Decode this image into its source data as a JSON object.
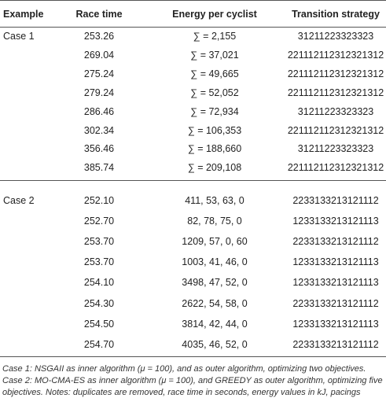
{
  "table": {
    "header": [
      "Example",
      "Race time",
      "Energy per cyclist",
      "Transition strategy"
    ],
    "groups": [
      {
        "label": "Case 1",
        "rows": [
          [
            "253.26",
            "∑ = 2,155",
            "31211223323323"
          ],
          [
            "269.04",
            "∑ = 37,021",
            "221112112312321312"
          ],
          [
            "275.24",
            "∑ = 49,665",
            "221112112312321312"
          ],
          [
            "279.24",
            "∑ = 52,052",
            "221112112312321312"
          ],
          [
            "286.46",
            "∑ = 72,934",
            "31211223323323"
          ],
          [
            "302.34",
            "∑ = 106,353",
            "221112112312321312"
          ],
          [
            "356.46",
            "∑ = 188,660",
            "31211223323323"
          ],
          [
            "385.74",
            "∑ = 209,108",
            "221112112312321312"
          ]
        ]
      },
      {
        "label": "Case 2",
        "rows": [
          [
            "252.10",
            "411, 53, 63, 0",
            "2233133213121112"
          ],
          [
            "252.70",
            "82, 78, 75, 0",
            "1233133213121113"
          ],
          [
            "253.70",
            "1209, 57, 0, 60",
            "2233133213121112"
          ],
          [
            "253.70",
            "1003, 41, 46, 0",
            "1233133213121113"
          ],
          [
            "254.10",
            "3498, 47, 52, 0",
            "1233133213121113"
          ],
          [
            "254.30",
            "2622, 54, 58, 0",
            "2233133213121112"
          ],
          [
            "254.50",
            "3814, 42, 44, 0",
            "1233133213121113"
          ],
          [
            "254.70",
            "4035, 46, 52, 0",
            "2233133213121112"
          ]
        ]
      }
    ],
    "caption": "Case 1: NSGAII as inner algorithm (μ = 100), and as outer algorithm, optimizing two objectives. Case 2: MO-CMA-ES as inner algorithm (μ = 100), and GREEDY as outer algorithm, optimizing five objectives. Notes: duplicates are removed, race time in seconds, energy values in kJ, pacings omitted."
  }
}
